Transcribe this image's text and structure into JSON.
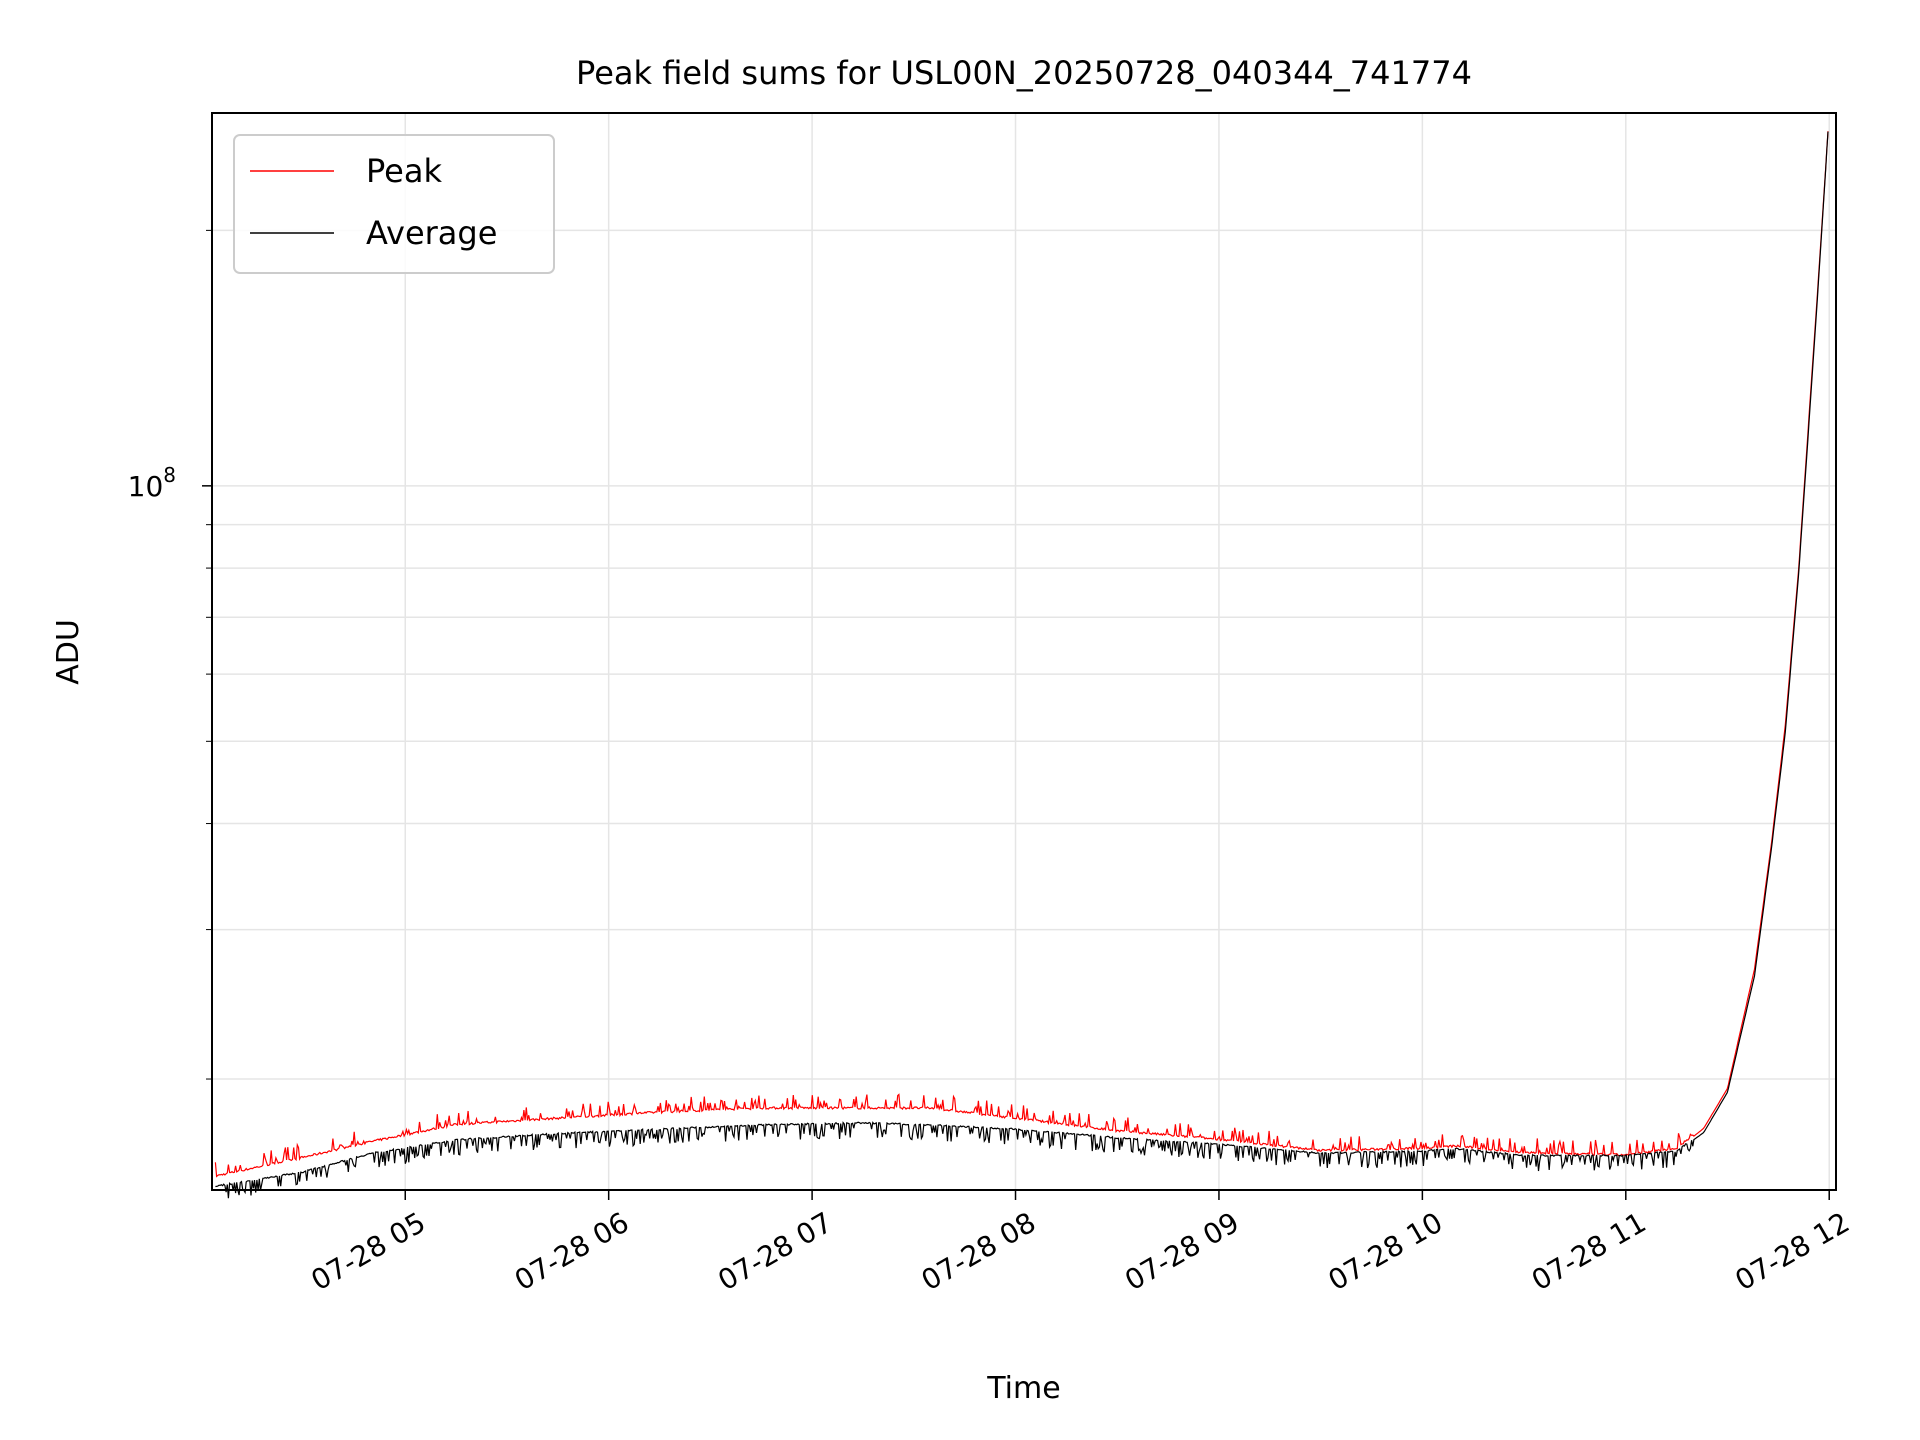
{
  "chart_data": {
    "type": "line",
    "title": "Peak field sums for USL00N_20250728_040344_741774",
    "xlabel": "Time",
    "ylabel": "ADU",
    "y_scale": "log",
    "y_tick_label_base": "10",
    "y_tick_label_exp": "8",
    "y_major_tick": 100000000,
    "ylim": [
      14800000,
      275000000
    ],
    "xlim": [
      "2025-07-28 04:03",
      "2025-07-28 12:02"
    ],
    "x_tick_labels": [
      "07-28 05",
      "07-28 06",
      "07-28 07",
      "07-28 08",
      "07-28 09",
      "07-28 10",
      "07-28 11",
      "07-28 12"
    ],
    "x_ticks": [
      "2025-07-28 05:00",
      "2025-07-28 06:00",
      "2025-07-28 07:00",
      "2025-07-28 08:00",
      "2025-07-28 09:00",
      "2025-07-28 10:00",
      "2025-07-28 11:00",
      "2025-07-28 12:00"
    ],
    "grid": true,
    "legend_position": "upper-left",
    "series": [
      {
        "name": "Peak",
        "color": "#ff0000",
        "points": [
          [
            "2025-07-28 04:04",
            15300000
          ],
          [
            "2025-07-28 04:30",
            16100000
          ],
          [
            "2025-07-28 04:50",
            16800000
          ],
          [
            "2025-07-28 05:15",
            17600000
          ],
          [
            "2025-07-28 05:45",
            17900000
          ],
          [
            "2025-07-28 06:15",
            18200000
          ],
          [
            "2025-07-28 06:45",
            18400000
          ],
          [
            "2025-07-28 07:15",
            18400000
          ],
          [
            "2025-07-28 07:35",
            18400000
          ],
          [
            "2025-07-28 08:00",
            17900000
          ],
          [
            "2025-07-28 08:30",
            17300000
          ],
          [
            "2025-07-28 09:00",
            16900000
          ],
          [
            "2025-07-28 09:30",
            16400000
          ],
          [
            "2025-07-28 10:00",
            16500000
          ],
          [
            "2025-07-28 10:10",
            16600000
          ],
          [
            "2025-07-28 10:30",
            16300000
          ],
          [
            "2025-07-28 11:00",
            16200000
          ],
          [
            "2025-07-28 11:15",
            16500000
          ],
          [
            "2025-07-28 11:23",
            17500000
          ],
          [
            "2025-07-28 11:30",
            19500000
          ],
          [
            "2025-07-28 11:38",
            27000000
          ],
          [
            "2025-07-28 11:43",
            38000000
          ],
          [
            "2025-07-28 11:47",
            52000000
          ],
          [
            "2025-07-28 11:51",
            80000000
          ],
          [
            "2025-07-28 11:54",
            120000000
          ],
          [
            "2025-07-28 11:57",
            180000000
          ],
          [
            "2025-07-28 12:00",
            275000000
          ]
        ]
      },
      {
        "name": "Average",
        "color": "#000000",
        "points": [
          [
            "2025-07-28 04:04",
            14900000
          ],
          [
            "2025-07-28 04:30",
            15500000
          ],
          [
            "2025-07-28 04:50",
            16300000
          ],
          [
            "2025-07-28 05:15",
            16900000
          ],
          [
            "2025-07-28 05:45",
            17200000
          ],
          [
            "2025-07-28 06:15",
            17400000
          ],
          [
            "2025-07-28 06:45",
            17600000
          ],
          [
            "2025-07-28 07:15",
            17700000
          ],
          [
            "2025-07-28 07:35",
            17600000
          ],
          [
            "2025-07-28 08:00",
            17400000
          ],
          [
            "2025-07-28 08:30",
            17000000
          ],
          [
            "2025-07-28 09:00",
            16700000
          ],
          [
            "2025-07-28 09:30",
            16300000
          ],
          [
            "2025-07-28 10:00",
            16400000
          ],
          [
            "2025-07-28 10:10",
            16500000
          ],
          [
            "2025-07-28 10:30",
            16200000
          ],
          [
            "2025-07-28 11:00",
            16200000
          ],
          [
            "2025-07-28 11:15",
            16400000
          ],
          [
            "2025-07-28 11:23",
            17300000
          ],
          [
            "2025-07-28 11:30",
            19300000
          ],
          [
            "2025-07-28 11:38",
            26500000
          ],
          [
            "2025-07-28 11:43",
            37500000
          ],
          [
            "2025-07-28 11:47",
            51000000
          ],
          [
            "2025-07-28 11:51",
            79000000
          ],
          [
            "2025-07-28 11:54",
            118000000
          ],
          [
            "2025-07-28 11:57",
            178000000
          ],
          [
            "2025-07-28 12:00",
            275000000
          ]
        ]
      }
    ]
  }
}
